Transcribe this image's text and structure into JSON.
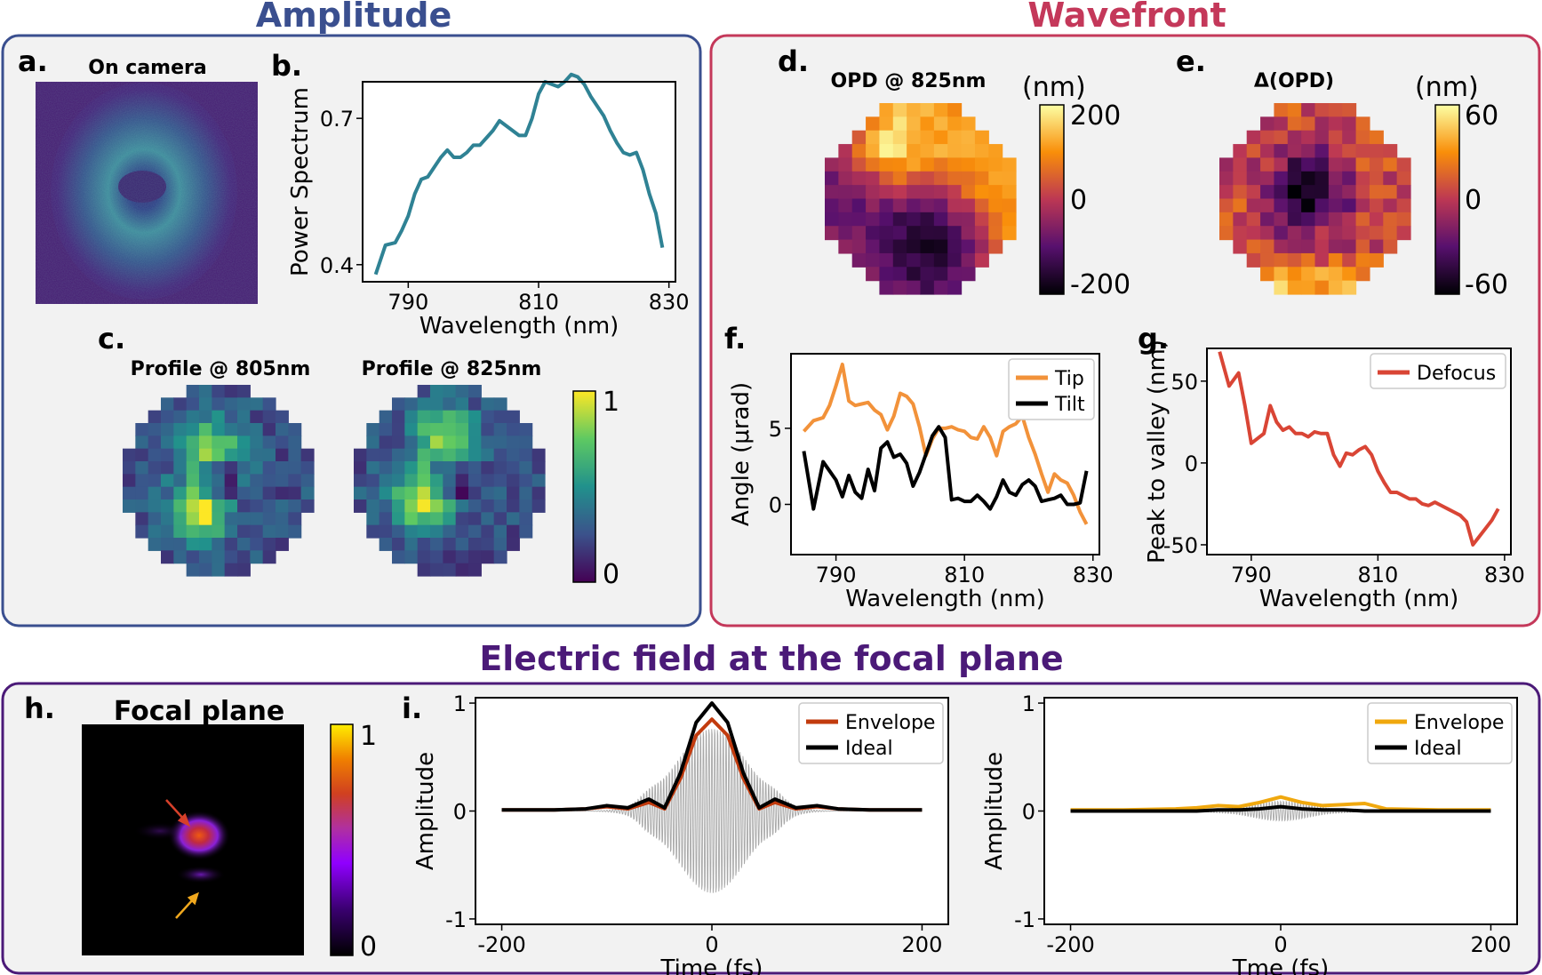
{
  "sections": {
    "amplitude": {
      "title": "Amplitude",
      "color": "#3a4f8f"
    },
    "wavefront": {
      "title": "Wavefront",
      "color": "#c4385a"
    },
    "efield": {
      "title": "Electric field at the focal plane",
      "color": "#4b1a78"
    }
  },
  "panels": {
    "a": {
      "letter": "a.",
      "title": "On camera"
    },
    "c": {
      "letter": "c.",
      "title_left": "Profile @ 805nm",
      "title_right": "Profile @ 825nm",
      "cbar_max": "1",
      "cbar_min": "0"
    },
    "d": {
      "letter": "d.",
      "title": "OPD @ 825nm",
      "unit": "(nm)",
      "cbar_max": "200",
      "cbar_mid": "0",
      "cbar_min": "-200"
    },
    "e": {
      "letter": "e.",
      "title": "Δ(OPD)",
      "unit": "(nm)",
      "cbar_max": "60",
      "cbar_mid": "0",
      "cbar_min": "-60"
    },
    "h": {
      "letter": "h.",
      "title": "Focal plane",
      "cbar_max": "1",
      "cbar_min": "0"
    }
  },
  "chart_data": [
    {
      "id": "b",
      "letter": "b.",
      "type": "line",
      "xlabel": "Wavelength (nm)",
      "ylabel": "Power Spectrum",
      "xlim": [
        783,
        831
      ],
      "ylim": [
        0.365,
        0.775
      ],
      "xticks": [
        790,
        810,
        830
      ],
      "yticks": [
        0.4,
        0.7
      ],
      "ytick_labels": [
        "0.4",
        "0.7"
      ],
      "series": [
        {
          "name": "Power Spectrum",
          "color": "#2f8294",
          "x": [
            785,
            786.5,
            788,
            789,
            790,
            791,
            792,
            793,
            794,
            795,
            796,
            797,
            798,
            799,
            800,
            801,
            802,
            803,
            804,
            805,
            806,
            807,
            808,
            809,
            810,
            811,
            812,
            813,
            814,
            815,
            816,
            817,
            818,
            819,
            820,
            821,
            822,
            823,
            824,
            825,
            826,
            827,
            828,
            829
          ],
          "y": [
            0.38,
            0.44,
            0.445,
            0.47,
            0.5,
            0.545,
            0.575,
            0.58,
            0.6,
            0.62,
            0.635,
            0.62,
            0.62,
            0.63,
            0.645,
            0.645,
            0.66,
            0.675,
            0.695,
            0.685,
            0.675,
            0.665,
            0.665,
            0.7,
            0.75,
            0.775,
            0.77,
            0.765,
            0.775,
            0.79,
            0.785,
            0.77,
            0.745,
            0.725,
            0.705,
            0.675,
            0.65,
            0.63,
            0.625,
            0.63,
            0.595,
            0.545,
            0.505,
            0.435
          ]
        }
      ]
    },
    {
      "id": "f",
      "letter": "f.",
      "type": "line",
      "xlabel": "Wavelength (nm)",
      "ylabel": "Angle (μrad)",
      "xlim": [
        783,
        831
      ],
      "ylim": [
        -3.3,
        9.9
      ],
      "xticks": [
        790,
        810,
        830
      ],
      "yticks": [
        0,
        5
      ],
      "ytick_labels": [
        "0",
        "5"
      ],
      "legend": [
        "Tip",
        "Tilt"
      ],
      "series": [
        {
          "name": "Tip",
          "color": "#f2923a",
          "x": [
            785,
            786.5,
            788,
            789,
            790,
            791,
            792,
            793,
            794,
            795,
            796,
            797,
            798,
            799,
            800,
            801,
            802,
            803,
            804,
            805,
            806,
            807,
            808,
            809,
            810,
            811,
            812,
            813,
            814,
            815,
            816,
            817,
            818,
            819,
            820,
            821,
            822,
            823,
            824,
            825,
            826,
            827,
            828,
            829
          ],
          "y": [
            4.8,
            5.5,
            5.7,
            6.5,
            7.8,
            9.2,
            6.8,
            6.5,
            6.6,
            6.7,
            6.2,
            5.9,
            4.9,
            5.8,
            7.3,
            7.1,
            6.6,
            5.1,
            3.2,
            4.3,
            5.0,
            5.0,
            5.1,
            4.9,
            4.8,
            4.4,
            4.3,
            5.1,
            4.4,
            3.2,
            4.8,
            5.1,
            5.3,
            5.8,
            4.4,
            3.3,
            2.0,
            0.8,
            2.0,
            1.6,
            1.4,
            0.6,
            -0.5,
            -1.3
          ]
        },
        {
          "name": "Tilt",
          "color": "#000000",
          "x": [
            785,
            786.5,
            788,
            789,
            790,
            791,
            792,
            793,
            794,
            795,
            796,
            797,
            798,
            799,
            800,
            801,
            802,
            803,
            804,
            805,
            806,
            807,
            808,
            809,
            810,
            811,
            812,
            813,
            814,
            815,
            816,
            817,
            818,
            819,
            820,
            821,
            822,
            823,
            824,
            825,
            826,
            827,
            828,
            829
          ],
          "y": [
            3.5,
            -0.3,
            2.8,
            2.2,
            1.6,
            0.5,
            1.9,
            0.8,
            0.4,
            2.3,
            0.9,
            3.7,
            4.1,
            3.1,
            3.3,
            2.7,
            1.2,
            2.1,
            3.3,
            4.5,
            5.1,
            4.4,
            0.3,
            0.4,
            0.2,
            0.2,
            0.6,
            0.2,
            -0.3,
            0.5,
            1.6,
            0.8,
            0.6,
            1.3,
            1.6,
            1.2,
            0.2,
            0.3,
            0.4,
            0.6,
            0.0,
            0.0,
            0.1,
            2.2
          ]
        }
      ]
    },
    {
      "id": "g",
      "letter": "g.",
      "type": "line",
      "xlabel": "Wavelength (nm)",
      "ylabel": "Peak to valley (nm)",
      "xlim": [
        783,
        831
      ],
      "ylim": [
        -56,
        70
      ],
      "xticks": [
        790,
        810,
        830
      ],
      "yticks": [
        -50,
        0,
        50
      ],
      "ytick_labels": [
        "-50",
        "0",
        "50"
      ],
      "legend": [
        "Defocus"
      ],
      "series": [
        {
          "name": "Defocus",
          "color": "#d94535",
          "x": [
            785,
            786.5,
            788,
            789,
            790,
            791,
            792,
            793,
            794,
            795,
            796,
            797,
            798,
            799,
            800,
            801,
            802,
            803,
            804,
            805,
            806,
            807,
            808,
            809,
            810,
            811,
            812,
            813,
            814,
            815,
            816,
            817,
            818,
            819,
            820,
            821,
            822,
            823,
            824,
            825,
            826,
            827,
            828,
            829
          ],
          "y": [
            68,
            47,
            55,
            35,
            12,
            15,
            18,
            35,
            25,
            20,
            22,
            18,
            18,
            16,
            19,
            18,
            18,
            5,
            -2,
            6,
            5,
            8,
            10,
            5,
            -5,
            -12,
            -18,
            -18,
            -20,
            -22,
            -22,
            -25,
            -26,
            -24,
            -26,
            -28,
            -30,
            -32,
            -36,
            -50,
            -45,
            -40,
            -35,
            -28
          ]
        }
      ]
    },
    {
      "id": "i_left",
      "letter": "i.",
      "type": "line",
      "xlabel": "Time (fs)",
      "ylabel": "Amplitude",
      "xlim": [
        -225,
        225
      ],
      "ylim": [
        -1.05,
        1.05
      ],
      "xticks": [
        -200,
        0,
        200
      ],
      "yticks": [
        -1,
        0,
        1
      ],
      "ytick_labels": [
        "-1",
        "0",
        "1"
      ],
      "legend": [
        "Envelope",
        "Ideal"
      ],
      "field": {
        "color": "#a8a8a8",
        "amplitude": 0.85,
        "width_fs": 33,
        "period_fs": 2.7
      },
      "series": [
        {
          "name": "Envelope",
          "color": "#c23b0e",
          "x": [
            -200,
            -150,
            -120,
            -100,
            -80,
            -60,
            -45,
            -30,
            -15,
            0,
            15,
            30,
            45,
            60,
            80,
            100,
            120,
            150,
            200
          ],
          "y": [
            0.01,
            0.01,
            0.02,
            0.04,
            0.02,
            0.08,
            0.02,
            0.3,
            0.7,
            0.85,
            0.7,
            0.3,
            0.02,
            0.08,
            0.02,
            0.04,
            0.02,
            0.01,
            0.01
          ]
        },
        {
          "name": "Ideal",
          "color": "#000000",
          "x": [
            -200,
            -150,
            -120,
            -100,
            -80,
            -60,
            -45,
            -30,
            -15,
            0,
            15,
            30,
            45,
            60,
            80,
            100,
            120,
            150,
            200
          ],
          "y": [
            0.01,
            0.01,
            0.02,
            0.05,
            0.03,
            0.11,
            0.03,
            0.35,
            0.82,
            1.0,
            0.82,
            0.35,
            0.03,
            0.11,
            0.03,
            0.05,
            0.02,
            0.01,
            0.01
          ]
        }
      ]
    },
    {
      "id": "i_right",
      "letter": "",
      "type": "line",
      "xlabel": "Tme (fs)",
      "ylabel": "Amplitude",
      "xlim": [
        -225,
        225
      ],
      "ylim": [
        -1.05,
        1.05
      ],
      "xticks": [
        -200,
        0,
        200
      ],
      "yticks": [
        -1,
        0,
        1
      ],
      "ytick_labels": [
        "-1",
        "0",
        "1"
      ],
      "legend": [
        "Envelope",
        "Ideal"
      ],
      "field": {
        "color": "#a8a8a8",
        "amplitude": 0.1,
        "width_fs": 28,
        "period_fs": 2.7
      },
      "series": [
        {
          "name": "Envelope",
          "color": "#f0a80e",
          "x": [
            -200,
            -150,
            -100,
            -80,
            -60,
            -40,
            -20,
            0,
            20,
            40,
            60,
            80,
            100,
            150,
            200
          ],
          "y": [
            0.01,
            0.01,
            0.02,
            0.03,
            0.05,
            0.04,
            0.08,
            0.13,
            0.08,
            0.05,
            0.06,
            0.07,
            0.02,
            0.01,
            0.01
          ]
        },
        {
          "name": "Ideal",
          "color": "#000000",
          "x": [
            -200,
            -150,
            -100,
            -80,
            -60,
            -40,
            -20,
            0,
            20,
            40,
            60,
            80,
            100,
            150,
            200
          ],
          "y": [
            0.0,
            0.0,
            0.0,
            0.0,
            0.01,
            0.01,
            0.02,
            0.04,
            0.02,
            0.01,
            0.01,
            0.0,
            0.0,
            0.0,
            0.0
          ]
        }
      ]
    }
  ],
  "maps": {
    "profile805": {
      "colormap": "viridis",
      "size": 15,
      "seed": 11,
      "peak": [
        9.5,
        5.5
      ],
      "peak2": [
        4.5,
        6.5
      ]
    },
    "profile825": {
      "colormap": "viridis",
      "size": 15,
      "seed": 23,
      "peak": [
        8.5,
        5.0
      ],
      "peak2": [
        3.5,
        6.5
      ]
    },
    "opd825": {
      "colormap": "inferno",
      "size": 14,
      "seed": 5
    },
    "dopd": {
      "colormap": "inferno",
      "size": 14,
      "seed": 41
    }
  }
}
